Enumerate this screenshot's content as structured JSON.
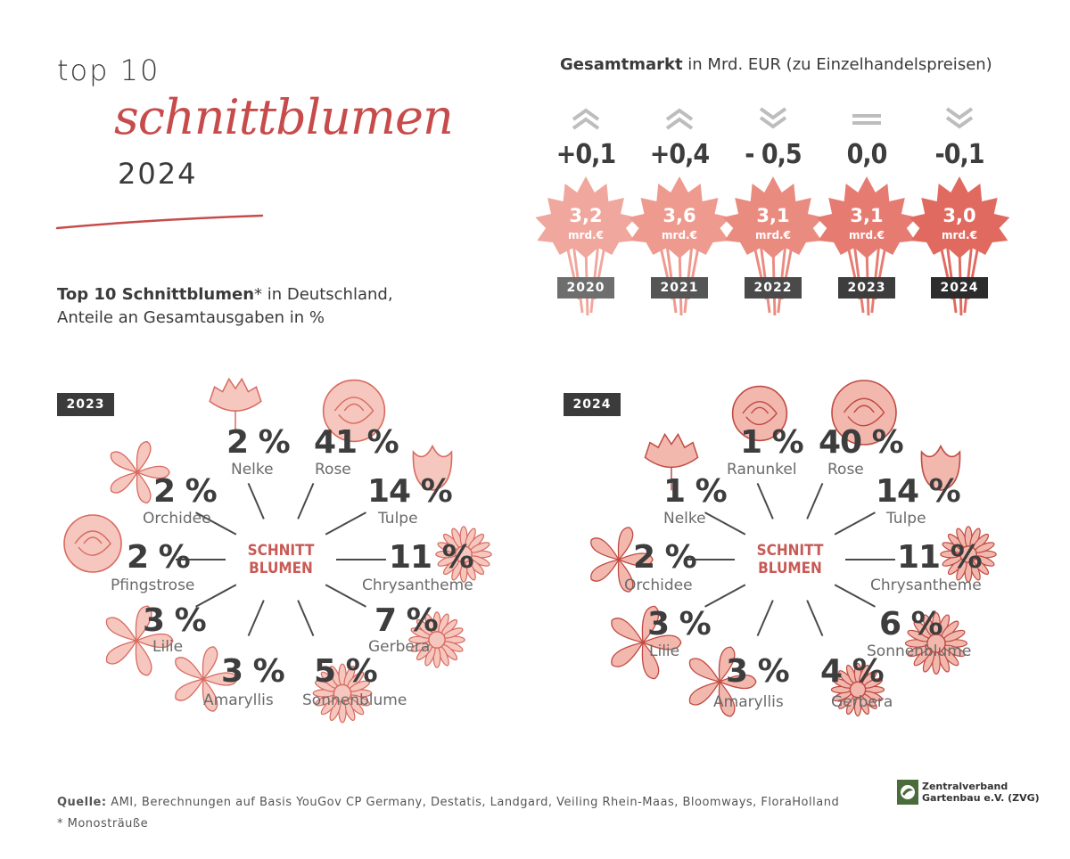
{
  "header": {
    "top": "top 10",
    "script": "schnittblumen",
    "year": "2024"
  },
  "subtitle": {
    "bold": "Top 10 Schnittblumen",
    "rest1": "* in Deutschland,",
    "line2": "Anteile an Gesamtausgaben in %"
  },
  "colors": {
    "accent": "#c74b4b",
    "flower_light": "#f0b3aa",
    "flower_dark": "#e26e62",
    "dark": "#3b3b3b"
  },
  "chart_data": [
    {
      "type": "bar",
      "title_bold": "Gesamtmarkt",
      "title_rest": " in Mrd. EUR (zu Einzelhandelspreisen)",
      "categories": [
        "2020",
        "2021",
        "2022",
        "2023",
        "2024"
      ],
      "values": [
        3.2,
        3.6,
        3.1,
        3.1,
        3.0
      ],
      "value_labels": [
        "3,2",
        "3,6",
        "3,1",
        "3,1",
        "3,0"
      ],
      "unit": "mrd.€",
      "changes": [
        "+0,1",
        "+0,4",
        "- 0,5",
        "0,0",
        "-0,1"
      ],
      "change_icons": [
        "chevron-up-icon",
        "chevron-up-icon",
        "chevron-down-icon",
        "equal-icon",
        "chevron-down-icon"
      ]
    },
    {
      "type": "pie",
      "label": "2023",
      "center": [
        "SCHNITT",
        "BLUMEN"
      ],
      "slices": [
        {
          "name": "Nelke",
          "value": 2,
          "label": "2 %"
        },
        {
          "name": "Rose",
          "value": 41,
          "label": "41 %"
        },
        {
          "name": "Tulpe",
          "value": 14,
          "label": "14 %"
        },
        {
          "name": "Chrysantheme",
          "value": 11,
          "label": "11 %"
        },
        {
          "name": "Gerbera",
          "value": 7,
          "label": "7 %"
        },
        {
          "name": "Sonnenblume",
          "value": 5,
          "label": "5 %"
        },
        {
          "name": "Amaryllis",
          "value": 3,
          "label": "3 %"
        },
        {
          "name": "Lilie",
          "value": 3,
          "label": "3 %"
        },
        {
          "name": "Pfingstrose",
          "value": 2,
          "label": "2 %"
        },
        {
          "name": "Orchidee",
          "value": 2,
          "label": "2 %"
        }
      ]
    },
    {
      "type": "pie",
      "label": "2024",
      "center": [
        "SCHNITT",
        "BLUMEN"
      ],
      "slices": [
        {
          "name": "Ranunkel",
          "value": 1,
          "label": "1 %"
        },
        {
          "name": "Rose",
          "value": 40,
          "label": "40 %"
        },
        {
          "name": "Tulpe",
          "value": 14,
          "label": "14 %"
        },
        {
          "name": "Chrysantheme",
          "value": 11,
          "label": "11 %"
        },
        {
          "name": "Sonnenblume",
          "value": 6,
          "label": "6 %"
        },
        {
          "name": "Gerbera",
          "value": 4,
          "label": "4 %"
        },
        {
          "name": "Amaryllis",
          "value": 3,
          "label": "3 %"
        },
        {
          "name": "Lilie",
          "value": 3,
          "label": "3 %"
        },
        {
          "name": "Orchidee",
          "value": 2,
          "label": "2 %"
        },
        {
          "name": "Nelke",
          "value": 1,
          "label": "1 %"
        }
      ]
    }
  ],
  "footer": {
    "source_bold": "Quelle:",
    "source_rest": " AMI, Berechnungen auf Basis YouGov CP Germany, Destatis, Landgard, Veiling Rhein-Maas, Bloomways, FloraHolland",
    "note": "* Monosträuße",
    "logo_line1": "Zentralverband",
    "logo_line2": "Gartenbau e.V. (ZVG)"
  }
}
